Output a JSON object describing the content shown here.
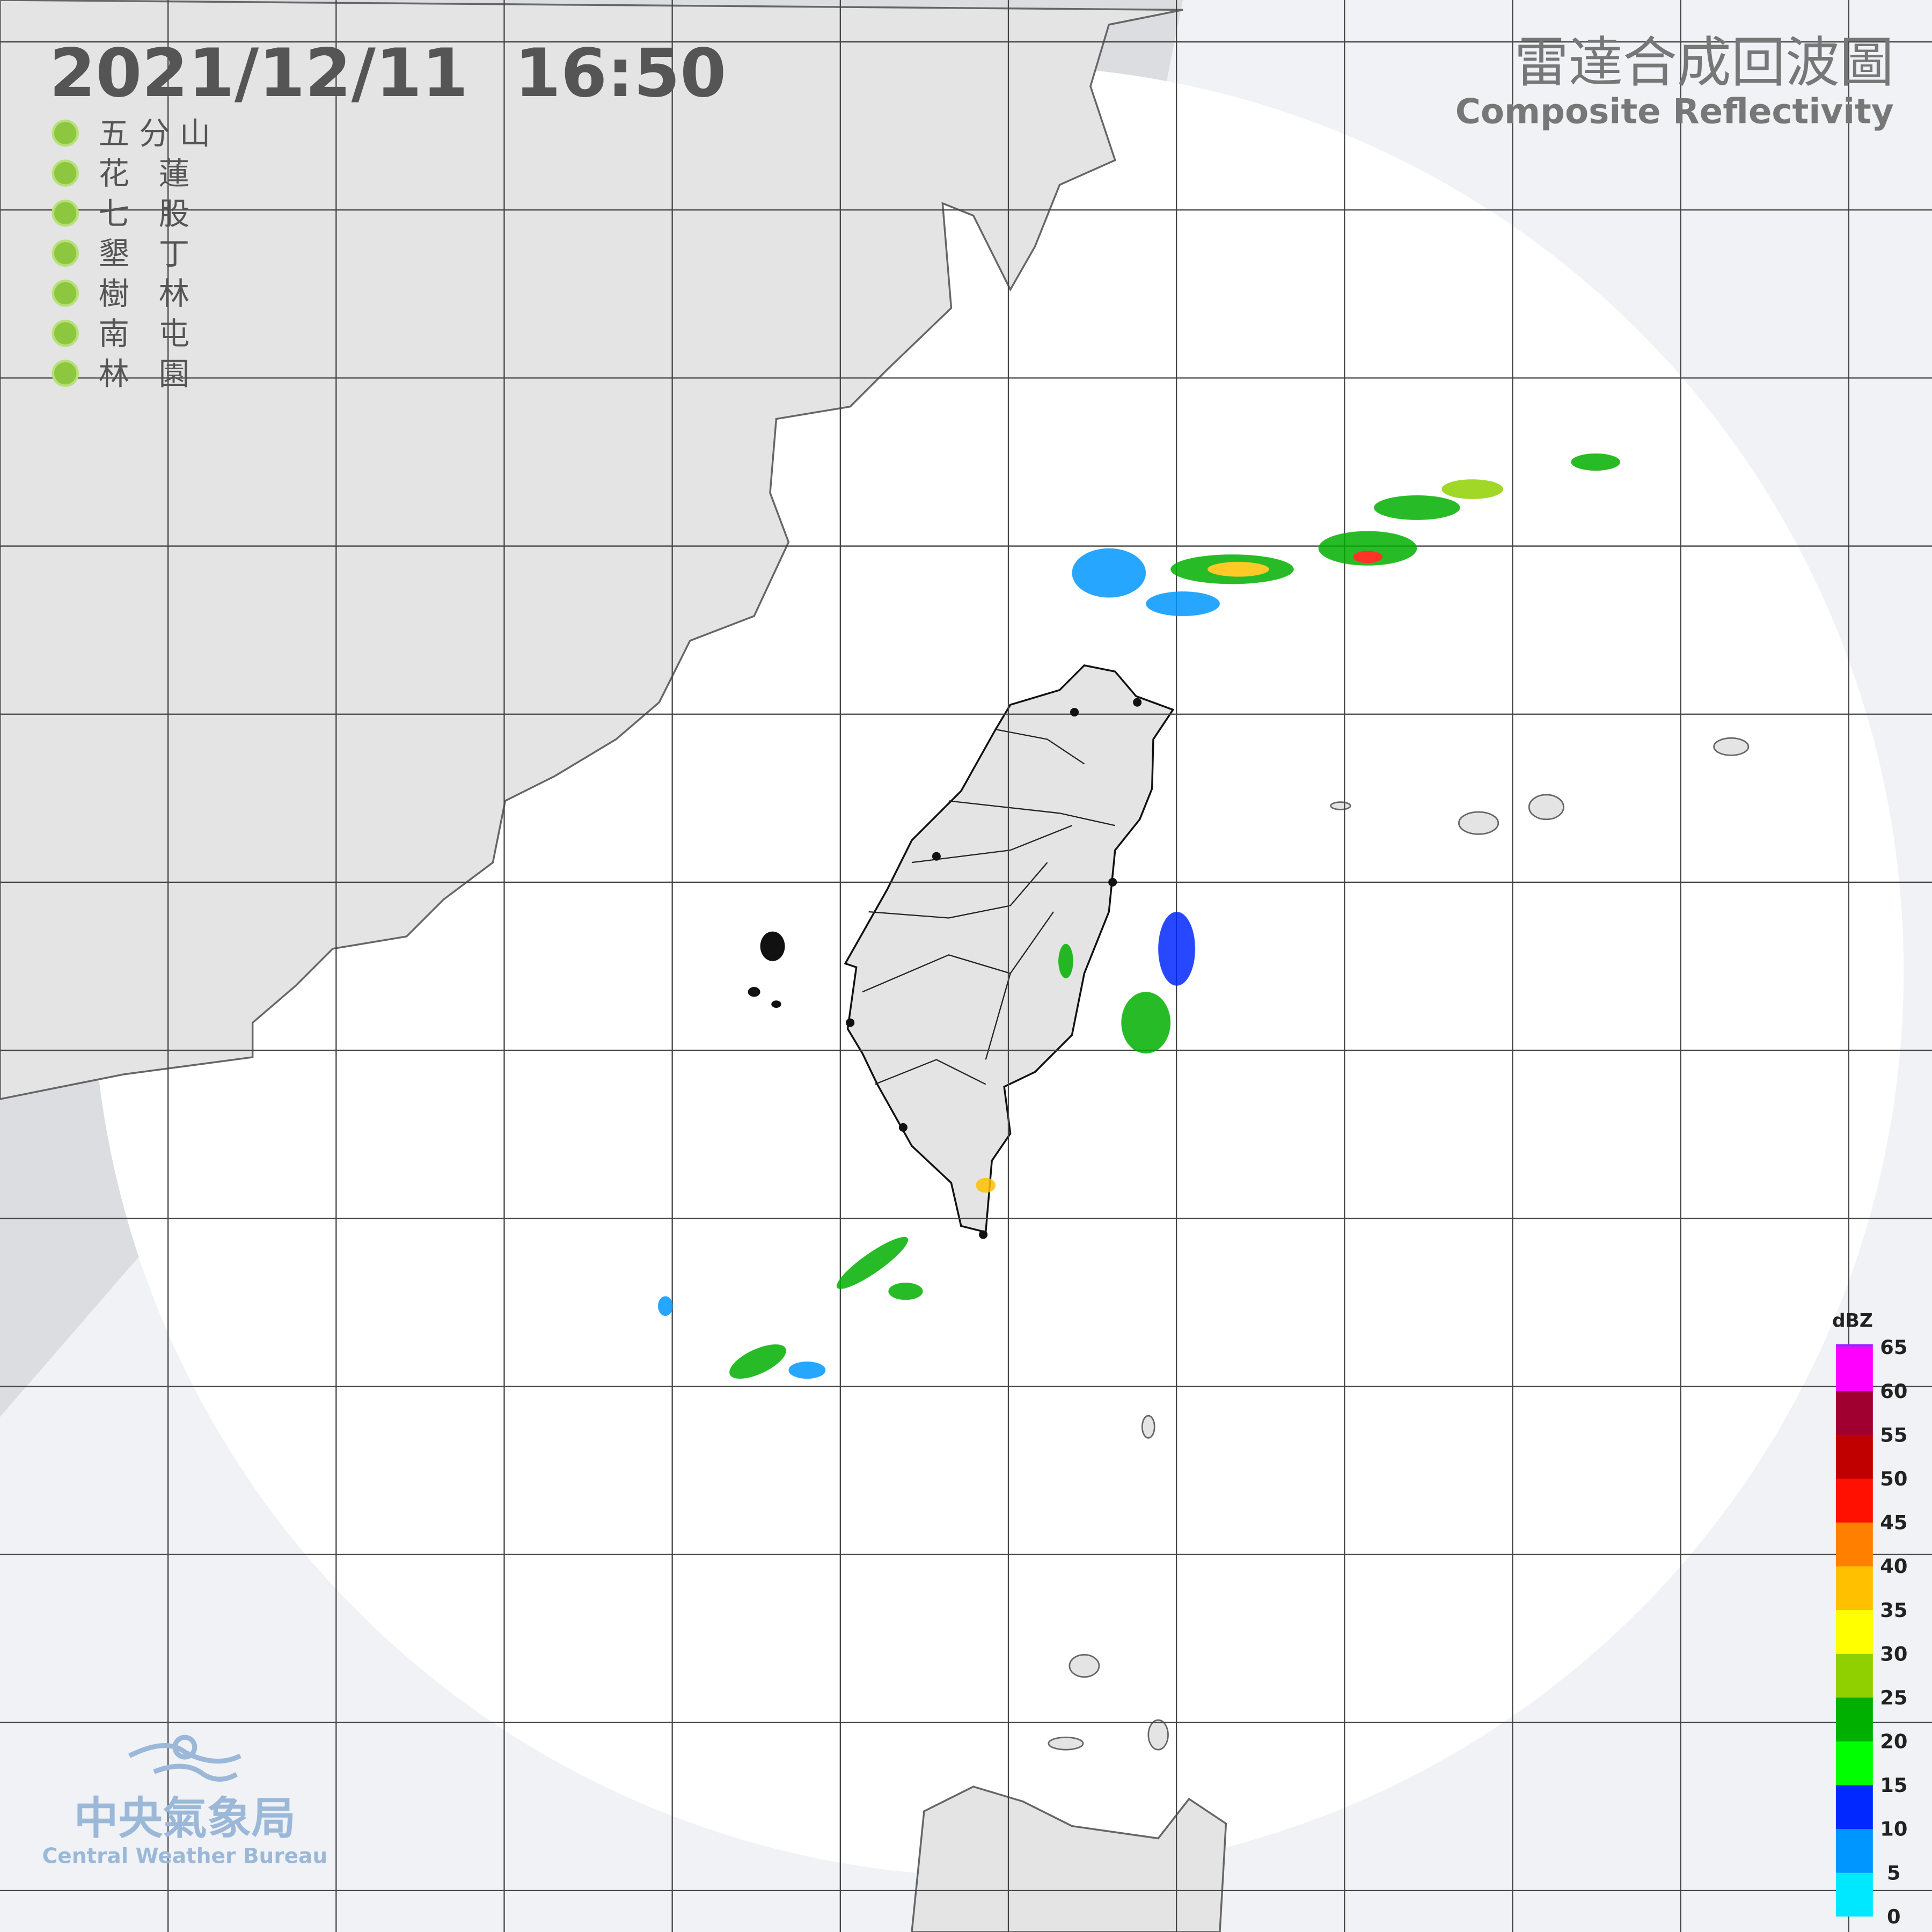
{
  "header": {
    "datetime": "2021/12/11  16:50",
    "title": "雷達合成回波圖",
    "subtitle": "Composite Reflectivity"
  },
  "stations": [
    "五 分 山",
    "花   蓮",
    "七   股",
    "墾   丁",
    "樹   林",
    "南   屯",
    "林   園"
  ],
  "legend": {
    "unit": "dBZ",
    "ticks": [
      0,
      5,
      10,
      15,
      20,
      25,
      30,
      35,
      40,
      45,
      50,
      55,
      60,
      65
    ],
    "colors": [
      "#00e8ff",
      "#0096ff",
      "#0028ff",
      "#00ff00",
      "#00b000",
      "#90d000",
      "#ffff00",
      "#ffc000",
      "#ff8000",
      "#ff1000",
      "#c00000",
      "#a00030",
      "#ff00ff",
      "#a020ff"
    ]
  },
  "logo": {
    "name": "中央氣象局",
    "english": "Central Weather Bureau"
  }
}
